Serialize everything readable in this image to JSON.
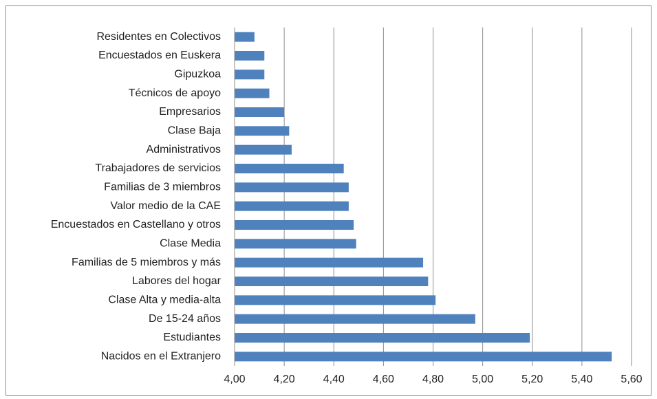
{
  "chart_data": {
    "type": "barh",
    "categories": [
      "Residentes en Colectivos",
      "Encuestados en Euskera",
      "Gipuzkoa",
      "Técnicos de apoyo",
      "Empresarios",
      "Clase Baja",
      "Administrativos",
      "Trabajadores de servicios",
      "Familias de 3 miembros",
      "Valor medio de la CAE",
      "Encuestados en Castellano y otros",
      "Clase Media",
      "Familias de 5 miembros y más",
      "Labores del hogar",
      "Clase Alta y media-alta",
      "De 15-24 años",
      "Estudiantes",
      "Nacidos en el Extranjero"
    ],
    "values": [
      4.08,
      4.12,
      4.12,
      4.14,
      4.2,
      4.22,
      4.23,
      4.44,
      4.46,
      4.46,
      4.48,
      4.49,
      4.76,
      4.78,
      4.81,
      4.97,
      5.19,
      5.52
    ],
    "color": "#4f81bd",
    "xlim": [
      4.0,
      5.6
    ],
    "xticks": [
      {
        "value": 4.0,
        "label": "4,00"
      },
      {
        "value": 4.2,
        "label": "4,20"
      },
      {
        "value": 4.4,
        "label": "4,40"
      },
      {
        "value": 4.6,
        "label": "4,60"
      },
      {
        "value": 4.8,
        "label": "4,80"
      },
      {
        "value": 5.0,
        "label": "5,00"
      },
      {
        "value": 5.2,
        "label": "5,20"
      },
      {
        "value": 5.4,
        "label": "5,40"
      },
      {
        "value": 5.6,
        "label": "5,60"
      }
    ],
    "grid": true
  }
}
